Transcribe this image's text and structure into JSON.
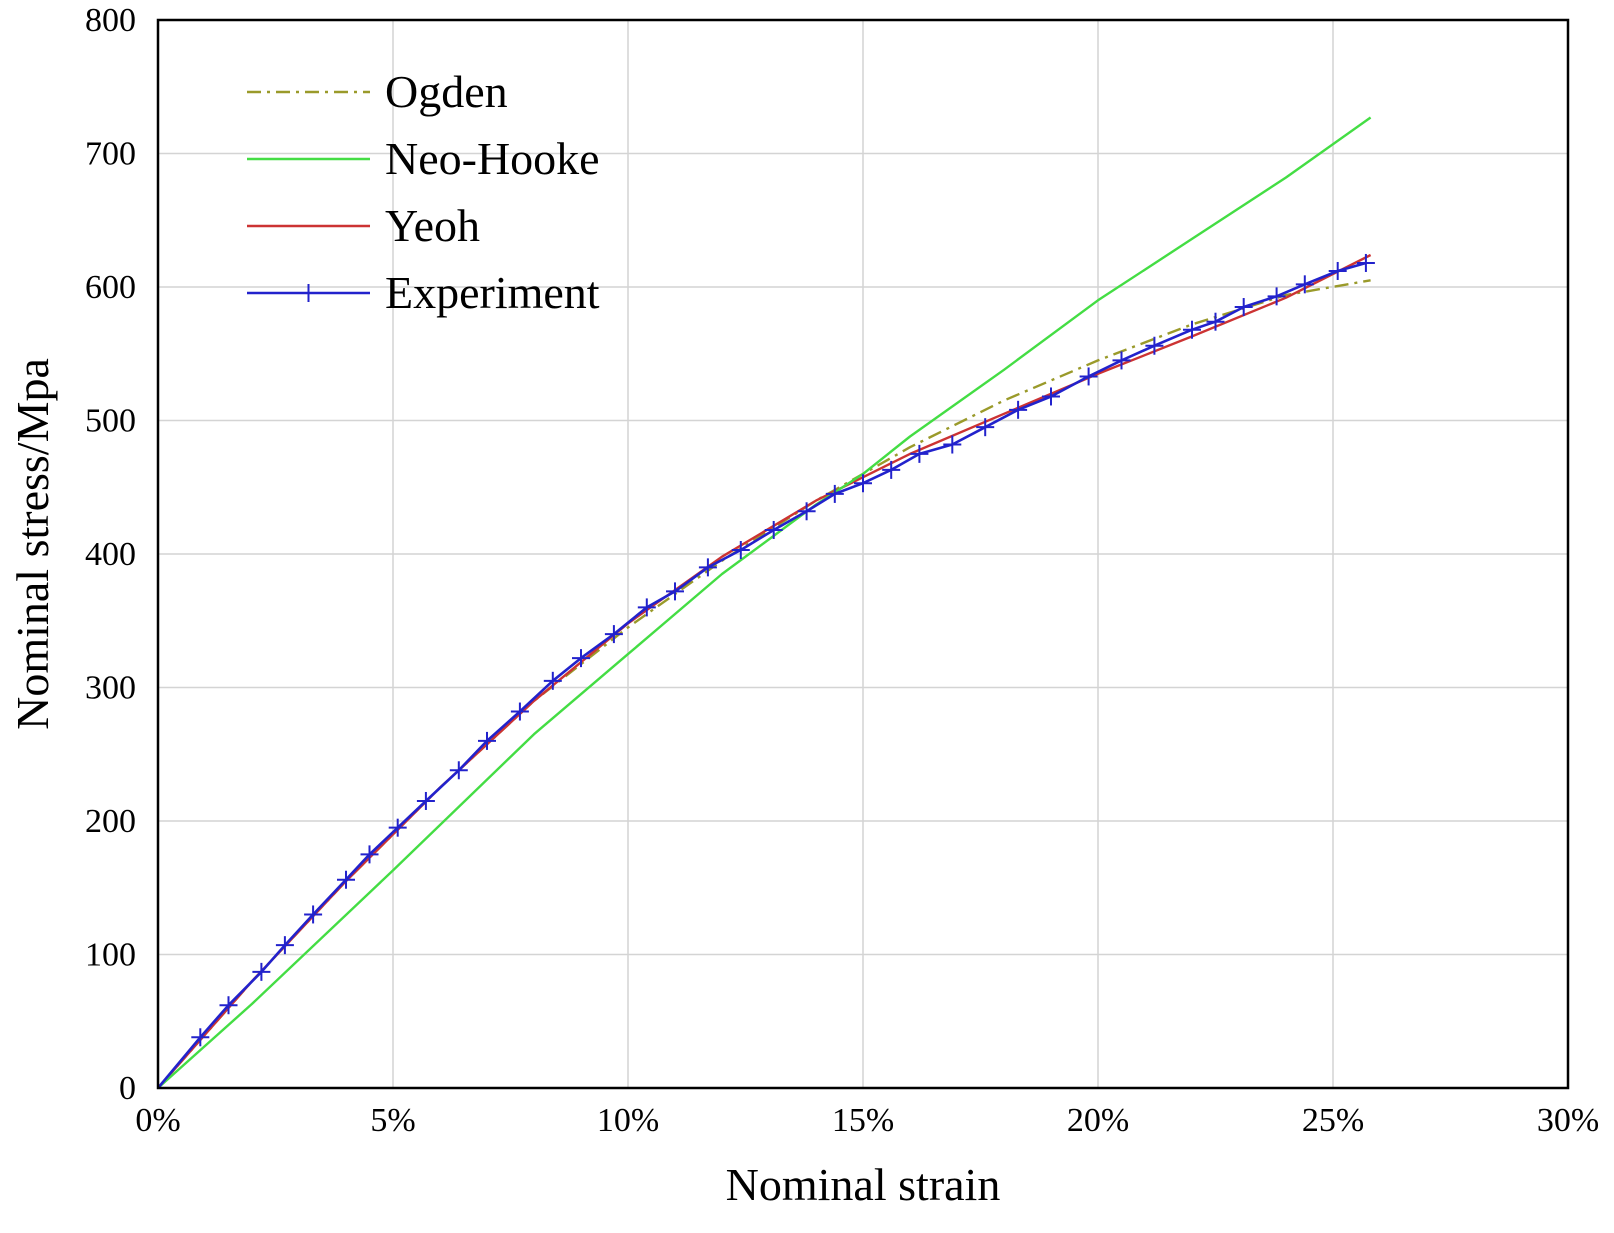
{
  "chart_data": {
    "type": "line",
    "xlabel": "Nominal strain",
    "ylabel": "Nominal stress/Mpa",
    "xlim": [
      0,
      30
    ],
    "ylim": [
      0,
      800
    ],
    "x_tick_labels": [
      "0%",
      "5%",
      "10%",
      "15%",
      "20%",
      "25%",
      "30%"
    ],
    "y_tick_labels": [
      "0",
      "100",
      "200",
      "300",
      "400",
      "500",
      "600",
      "700",
      "800"
    ],
    "grid": true,
    "legend_position": "top-left",
    "series": [
      {
        "name": "Ogden",
        "color": "#9a9a2a",
        "style": "dashdot",
        "markers": false,
        "x": [
          0,
          2,
          4,
          6,
          8,
          10,
          12,
          14,
          16,
          18,
          20,
          22,
          24,
          25.8
        ],
        "y": [
          0,
          80,
          155,
          225,
          290,
          345,
          395,
          440,
          480,
          515,
          545,
          572,
          594,
          605
        ]
      },
      {
        "name": "Neo-Hooke",
        "color": "#44dd44",
        "style": "solid",
        "markers": false,
        "x": [
          0,
          2,
          5,
          8,
          10,
          12,
          14,
          15,
          16,
          18,
          20,
          22,
          24,
          25.8
        ],
        "y": [
          0,
          63,
          163,
          265,
          325,
          385,
          437,
          460,
          488,
          538,
          590,
          636,
          682,
          727
        ]
      },
      {
        "name": "Yeoh",
        "color": "#cc3333",
        "style": "solid",
        "markers": false,
        "x": [
          0,
          2,
          4,
          6,
          8,
          10,
          12,
          14,
          16,
          18,
          20,
          22,
          24,
          25.8
        ],
        "y": [
          0,
          80,
          155,
          225,
          290,
          348,
          398,
          440,
          475,
          505,
          535,
          563,
          592,
          624
        ]
      },
      {
        "name": "Experiment",
        "color": "#2222cc",
        "style": "solid",
        "markers": true,
        "x": [
          0,
          0.9,
          1.5,
          2.2,
          2.7,
          3.3,
          4.0,
          4.5,
          5.1,
          5.7,
          6.4,
          7.0,
          7.7,
          8.4,
          9.0,
          9.7,
          10.4,
          11.0,
          11.7,
          12.4,
          13.1,
          13.8,
          14.4,
          15.0,
          15.6,
          16.2,
          16.9,
          17.6,
          18.3,
          19.0,
          19.8,
          20.5,
          21.2,
          22.0,
          22.5,
          23.1,
          23.8,
          24.4,
          25.1,
          25.7
        ],
        "y": [
          0,
          38,
          62,
          87,
          107,
          130,
          156,
          175,
          195,
          215,
          238,
          260,
          282,
          305,
          322,
          340,
          360,
          372,
          390,
          403,
          418,
          432,
          445,
          453,
          463,
          475,
          482,
          495,
          508,
          518,
          533,
          545,
          556,
          568,
          574,
          585,
          593,
          602,
          612,
          618
        ]
      }
    ]
  }
}
